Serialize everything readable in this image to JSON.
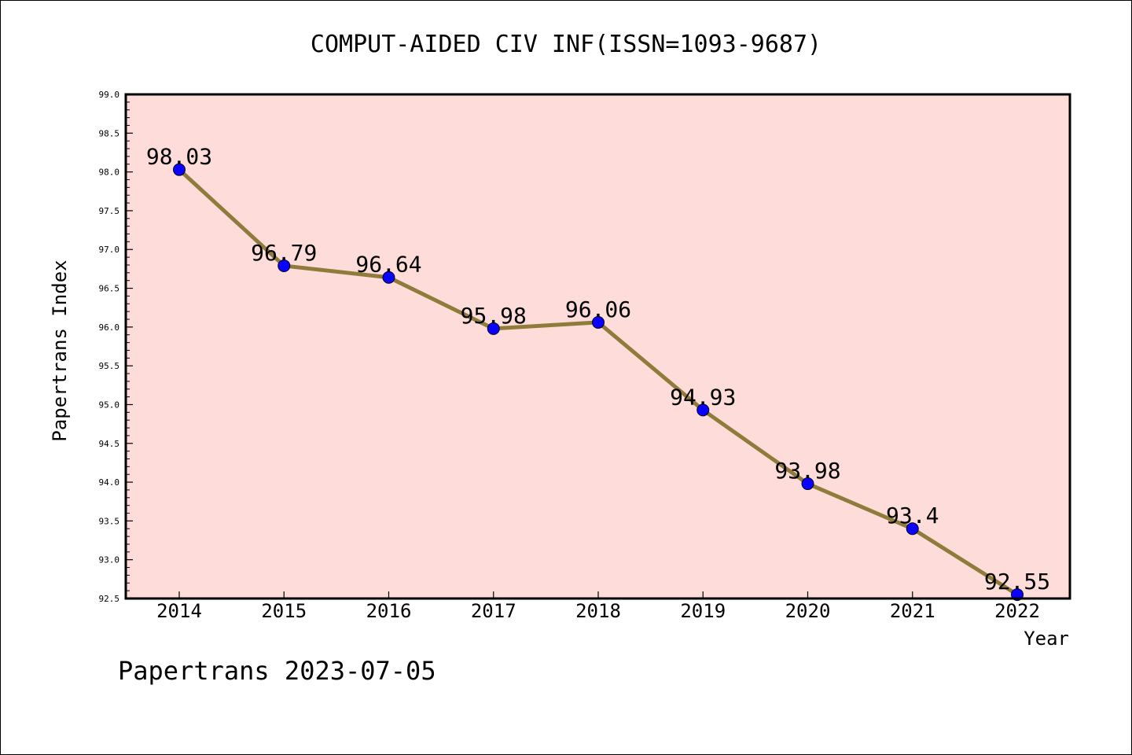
{
  "chart_data": {
    "type": "line",
    "title": "COMPUT-AIDED CIV INF(ISSN=1093-9687)",
    "xlabel": "Year",
    "ylabel": "Papertrans Index",
    "categories": [
      "2014",
      "2015",
      "2016",
      "2017",
      "2018",
      "2019",
      "2020",
      "2021",
      "2022"
    ],
    "series": [
      {
        "values": [
          98.03,
          96.79,
          96.64,
          95.98,
          96.06,
          94.93,
          93.98,
          93.4,
          92.55
        ],
        "labels": [
          "98.03",
          "96.79",
          "96.64",
          "95.98",
          "96.06",
          "94.93",
          "93.98",
          "93.4",
          "92.55"
        ]
      }
    ],
    "ylim": [
      92.5,
      99.0
    ],
    "yticks": [
      "92.5",
      "93.0",
      "93.5",
      "94.0",
      "94.5",
      "95.0",
      "95.5",
      "96.0",
      "96.5",
      "97.0",
      "97.5",
      "98.0",
      "98.5",
      "99.0"
    ],
    "grid": false,
    "legend": "none",
    "colors": {
      "plot_background": "#fddcda",
      "line": "#8f7c3a",
      "marker": "#0a00ff",
      "axis": "#000000"
    }
  },
  "footer": {
    "text": "Papertrans 2023-07-05"
  }
}
